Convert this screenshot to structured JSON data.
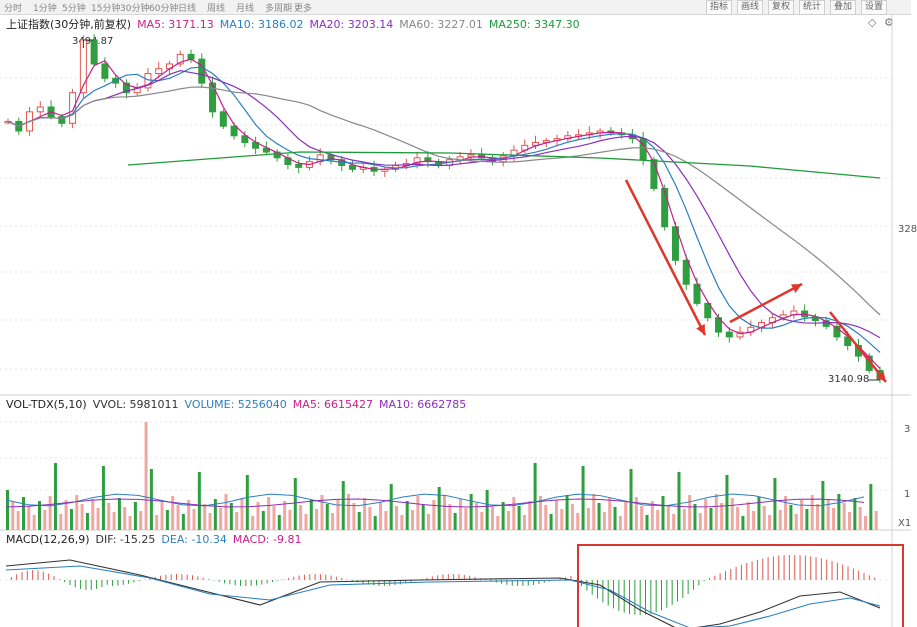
{
  "toolbar": {
    "tabs": [
      "分时",
      "1分钟",
      "5分钟",
      "15分钟",
      "30分钟",
      "60分钟",
      "日线",
      "周线",
      "月线",
      "多周期",
      "更多"
    ],
    "right_buttons": [
      "指标",
      "画线",
      "复权",
      "统计",
      "叠加",
      "设置"
    ]
  },
  "price_panel": {
    "title": "上证指数(30分钟,前复权)",
    "ma": [
      {
        "label": "MA5: 3171.13",
        "color": "#c81e8c"
      },
      {
        "label": "MA10: 3186.02",
        "color": "#2a7fc1"
      },
      {
        "label": "MA20: 3203.14",
        "color": "#8a2fb8"
      },
      {
        "label": "MA60: 3227.01",
        "color": "#888888"
      },
      {
        "label": "MA250: 3347.30",
        "color": "#1f9a3a"
      }
    ],
    "high_label": "3494.87",
    "low_label": "3140.98",
    "right_axis_label": "328"
  },
  "volume_panel": {
    "title": "VOL-TDX(5,10)",
    "items": [
      {
        "label": "VVOL: 5981011",
        "color": "#333333"
      },
      {
        "label": "VOLUME: 5256040",
        "color": "#2a7fc1"
      },
      {
        "label": "MA5: 6615427",
        "color": "#c81e8c"
      },
      {
        "label": "MA10: 6662785",
        "color": "#8a2fb8"
      }
    ],
    "right_axis_labels": [
      "3",
      "1",
      "X1"
    ]
  },
  "macd_panel": {
    "title": "MACD(12,26,9)",
    "items": [
      {
        "label": "DIF: -15.25",
        "color": "#333333"
      },
      {
        "label": "DEA: -10.34",
        "color": "#2a7fc1"
      },
      {
        "label": "MACD: -9.81",
        "color": "#c81e8c"
      }
    ]
  },
  "colors": {
    "up": "#e0574f",
    "down": "#2e9e3e",
    "arrow": "#e0352b"
  },
  "chart_data": {
    "type": "candlestick",
    "title": "上证指数(30分钟,前复权)",
    "series_summary": {
      "high": 3494.87,
      "low": 3140.98
    },
    "ma_last": {
      "MA5": 3171.13,
      "MA10": 3186.02,
      "MA20": 3203.14,
      "MA60": 3227.01,
      "MA250": 3347.3
    },
    "volume_last": {
      "VVOL": 5981011,
      "VOLUME": 5256040,
      "MA5": 6615427,
      "MA10": 6662785
    },
    "macd_last": {
      "DIF": -15.25,
      "DEA": -10.34,
      "MACD": -9.81
    },
    "price_path": [
      3410,
      3400,
      3420,
      3425,
      3415,
      3408,
      3440,
      3495,
      3470,
      3455,
      3450,
      3440,
      3445,
      3460,
      3465,
      3470,
      3480,
      3475,
      3450,
      3420,
      3405,
      3395,
      3388,
      3382,
      3378,
      3372,
      3365,
      3362,
      3368,
      3375,
      3370,
      3364,
      3360,
      3362,
      3358,
      3360,
      3364,
      3366,
      3372,
      3368,
      3364,
      3370,
      3373,
      3375,
      3372,
      3368,
      3374,
      3380,
      3385,
      3388,
      3390,
      3392,
      3395,
      3396,
      3398,
      3400,
      3398,
      3396,
      3392,
      3370,
      3340,
      3300,
      3265,
      3240,
      3220,
      3205,
      3190,
      3185,
      3190,
      3195,
      3200,
      3205,
      3208,
      3212,
      3206,
      3202,
      3196,
      3185,
      3176,
      3165,
      3150,
      3141
    ]
  }
}
